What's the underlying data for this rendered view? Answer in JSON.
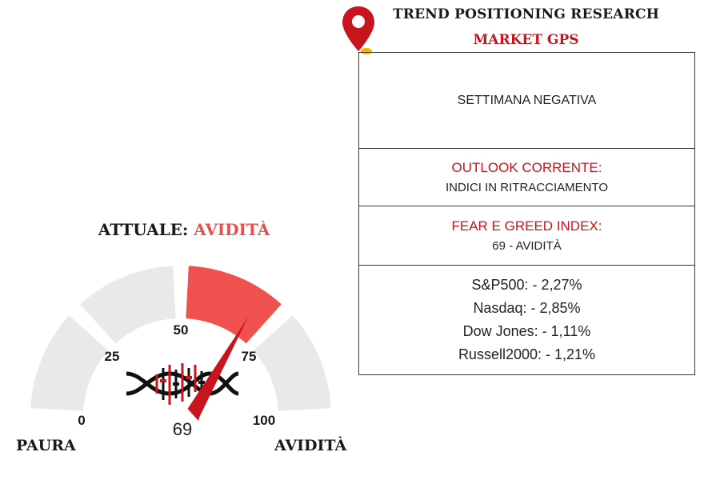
{
  "header": {
    "title": "TREND POSITIONING RESEARCH",
    "subtitle": "MARKET GPS",
    "pin_icon": "map-pin-icon",
    "accent_color": "#c8141c"
  },
  "panel": {
    "week_status": "SETTIMANA NEGATIVA",
    "outlook": {
      "label": "OUTLOOK CORRENTE:",
      "value": "INDICI IN RITRACCIAMENTO"
    },
    "fear_greed": {
      "label": "FEAR E GREED INDEX:",
      "value": "69 - AVIDITÀ"
    },
    "indices": [
      {
        "name": "S&P500",
        "change": "- 2,27%"
      },
      {
        "name": "Nasdaq",
        "change": "- 2,85%"
      },
      {
        "name": "Dow Jones",
        "change": "- 1,11%"
      },
      {
        "name": "Russell2000",
        "change": "- 1,21%"
      }
    ]
  },
  "gauge": {
    "current_prefix": "ATTUALE:",
    "current_state": "AVIDITÀ",
    "value": 69,
    "value_label": "69",
    "min": 0,
    "max": 100,
    "ticks": [
      "0",
      "25",
      "50",
      "75",
      "100"
    ],
    "left_label": "PAURA",
    "right_label": "AVIDITÀ",
    "active_color": "#f0514f",
    "inactive_color": "#e9e9e9",
    "center_icon": "dna-chart-icon"
  }
}
